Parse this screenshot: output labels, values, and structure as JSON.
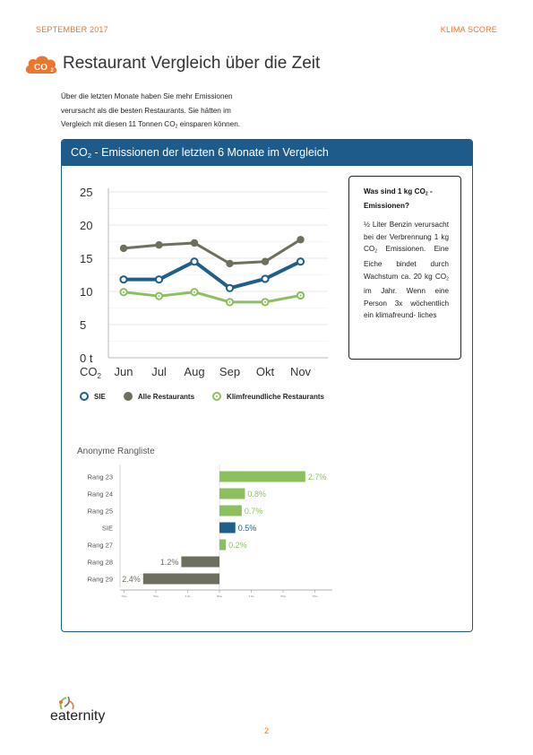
{
  "header": {
    "date": "SEPTEMBER 2017",
    "section": "KLIMA SCORE"
  },
  "badge": {
    "text": "CO",
    "sub": "2"
  },
  "title": "Restaurant Vergleich über die Zeit",
  "intro": {
    "line1": "Über die letzten Monate haben Sie mehr Emissionen",
    "line2": "verursacht als die besten Restaurants. Sie hätten im",
    "line3_prefix": "Vergleich mit diesen 11 Tonnen CO",
    "line3_sub": "2",
    "line3_suffix": " einsparen können."
  },
  "panel": {
    "title_prefix": "CO",
    "title_sub": "2",
    "title_suffix": " - Emissionen der letzten 6 Monate im Vergleich"
  },
  "colors": {
    "accent_orange": "#e9772f",
    "panel_blue": "#1e5a8a",
    "sie": "#1f5f8b",
    "all": "#6e6f5e",
    "klim": "#8cbf5d"
  },
  "chart_data": [
    {
      "type": "line",
      "categories": [
        "Jun",
        "Jul",
        "Aug",
        "Sep",
        "Okt",
        "Nov"
      ],
      "y_ticks": [
        "25",
        "20",
        "15",
        "10",
        "5",
        "0 t"
      ],
      "y_unit_prefix": "CO",
      "y_unit_sub": "2",
      "ylim": [
        0,
        25
      ],
      "grid": true,
      "legend_position": "bottom",
      "series": [
        {
          "name": "SIE",
          "values": [
            11.8,
            11.8,
            14.5,
            10.5,
            11.9,
            14.5
          ],
          "color": "#1f5f8b",
          "marker": "hollow"
        },
        {
          "name": "Alle Restaurants",
          "values": [
            16.5,
            17.0,
            17.3,
            14.2,
            14.5,
            17.8
          ],
          "color": "#6e6f5e",
          "marker": "filled"
        },
        {
          "name": "Klimfreundliche Restaurants",
          "values": [
            9.9,
            9.3,
            9.9,
            8.4,
            8.4,
            9.4
          ],
          "color": "#8cbf5d",
          "marker": "hollow"
        }
      ]
    },
    {
      "type": "bar",
      "orientation": "horizontal",
      "title": "Anonyme Rangliste",
      "categories": [
        "Rang 23",
        "Rang 24",
        "Rang 25",
        "SIE",
        "Rang 27",
        "Rang 28",
        "Rang 29"
      ],
      "values": [
        2.7,
        0.8,
        0.7,
        0.5,
        0.2,
        -1.2,
        -2.4
      ],
      "labels": [
        "2.7%",
        "0.8%",
        "0.7%",
        "0.5%",
        "0.2%",
        "1.2%",
        "2.4%"
      ],
      "bar_colors": [
        "#8cbf5d",
        "#8cbf5d",
        "#8cbf5d",
        "#1f5f8b",
        "#8cbf5d",
        "#6e6f5e",
        "#6e6f5e"
      ],
      "xlim": [
        -3,
        3.5
      ],
      "x_ticks": [
        "3%",
        "2%",
        "1%",
        "0%",
        "1%",
        "2%",
        "3%"
      ],
      "x_tick_values": [
        -3,
        -2,
        -1,
        0,
        1,
        2,
        3
      ]
    }
  ],
  "info_box": {
    "title_prefix": "Was sind 1 kg CO",
    "title_sub": "2",
    "title_suffix": " - Emissionen?",
    "p1": "½ Liter Benzin verursacht bei der Verbrennung 1 kg CO",
    "p1_sub": "2",
    "p2": " Emissionen. Eine Eiche bindet durch Wachstum ca. 20 kg CO",
    "p2_sub": "2",
    "p3": " im Jahr. Wenn eine Person 3x wöchentlich ein klimafreund- liches"
  },
  "logo": {
    "text": "eaternity"
  },
  "page_number": "2"
}
